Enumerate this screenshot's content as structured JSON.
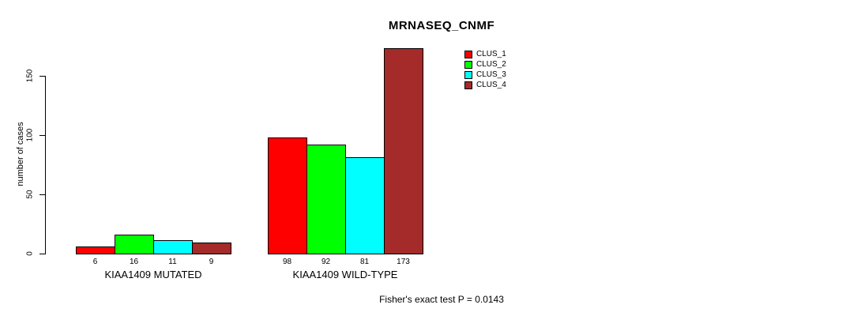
{
  "chart_data": {
    "type": "bar",
    "title": "MRNASEQ_CNMF",
    "ylabel": "number of cases",
    "xlabel": "",
    "annotation": "Fisher's exact test P = 0.0143",
    "categories": [
      "KIAA1409 MUTATED",
      "KIAA1409 WILD-TYPE"
    ],
    "groups": [
      {
        "label": "KIAA1409 MUTATED",
        "values": [
          6,
          16,
          11,
          9
        ]
      },
      {
        "label": "KIAA1409 WILD-TYPE",
        "values": [
          98,
          92,
          81,
          173
        ]
      }
    ],
    "series": [
      {
        "name": "CLUS_1",
        "color": "#FF0000"
      },
      {
        "name": "CLUS_2",
        "color": "#00FF00"
      },
      {
        "name": "CLUS_3",
        "color": "#00FFFF"
      },
      {
        "name": "CLUS_4",
        "color": "#A52A2A"
      }
    ],
    "bar_value_labels": [
      [
        6,
        16,
        11,
        9
      ],
      [
        98,
        92,
        81,
        173
      ]
    ],
    "yticks": [
      0,
      50,
      100,
      150
    ],
    "ylim": [
      0,
      173
    ],
    "grid": false,
    "legend_position": "top-right",
    "bar_border_color": "#000000",
    "background_color": "#FFFFFF"
  }
}
